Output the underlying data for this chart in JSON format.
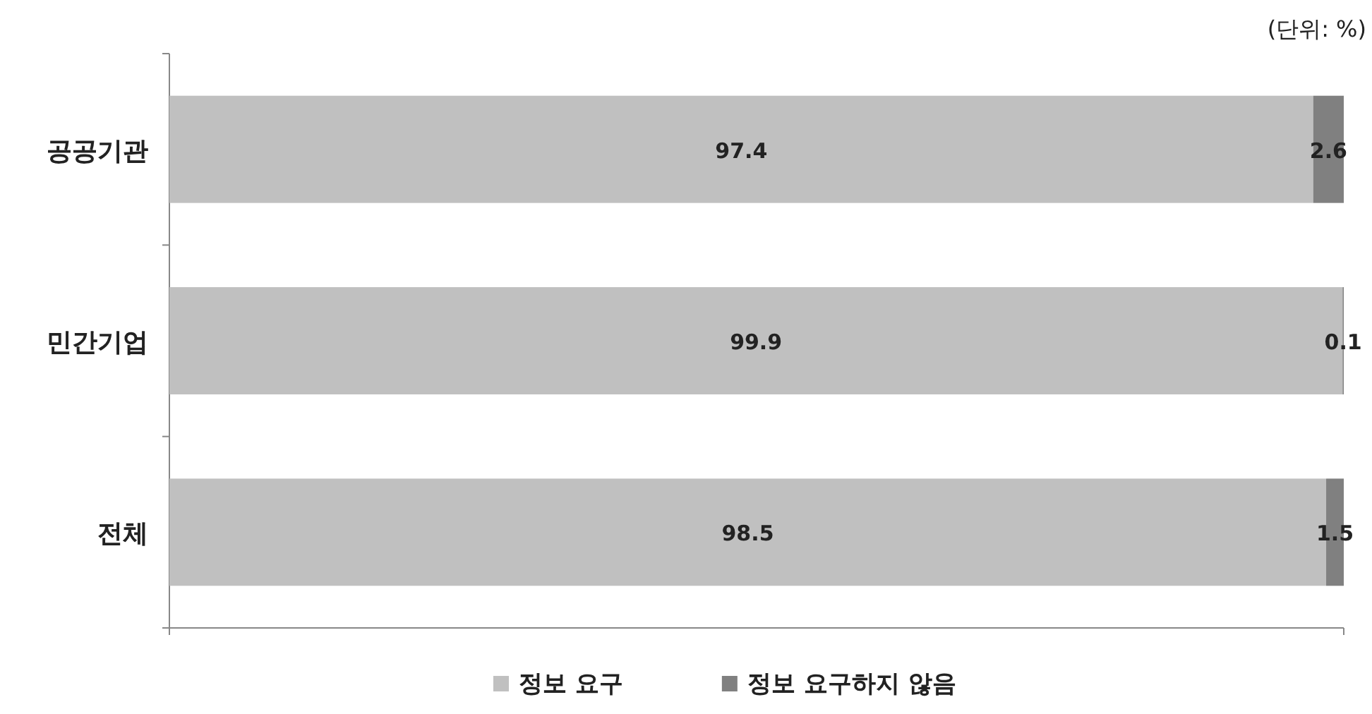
{
  "chart_data": {
    "type": "bar",
    "orientation": "horizontal",
    "stacked": true,
    "categories": [
      "공공기관",
      "민간기업",
      "전체"
    ],
    "series": [
      {
        "name": "정보 요구",
        "color": "#c0c0c0",
        "values": [
          97.4,
          99.9,
          98.5
        ]
      },
      {
        "name": "정보 요구하지 않음",
        "color": "#808080",
        "values": [
          2.6,
          0.1,
          1.5
        ]
      }
    ],
    "xlim": [
      0,
      100
    ],
    "data_labels": true,
    "legend": "bottom",
    "grid": false,
    "tick_labels": "y",
    "annotations": [
      "(단위: %)"
    ]
  }
}
